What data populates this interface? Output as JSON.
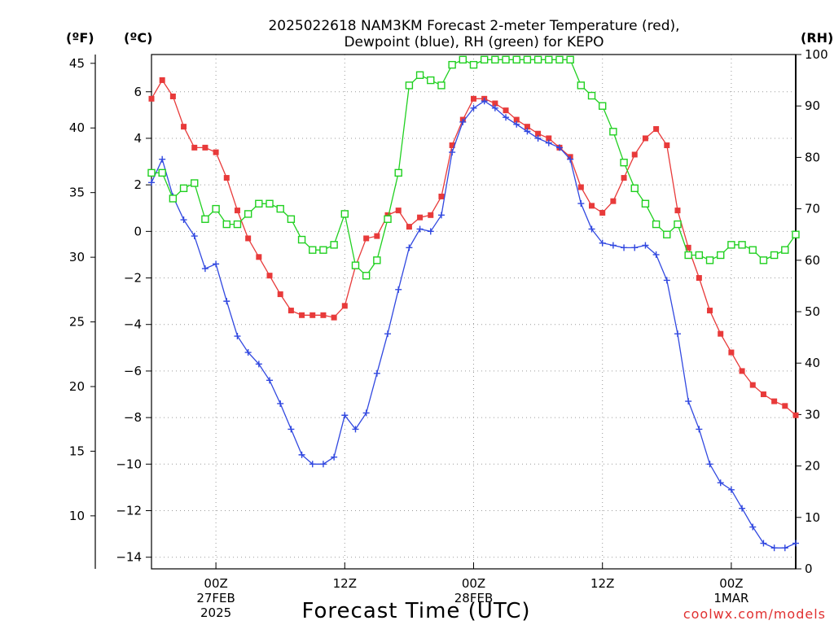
{
  "chart_data": {
    "type": "line",
    "title_line1": "2025022618 NAM3KM Forecast 2-meter Temperature (red),",
    "title_line2": "Dewpoint (blue), RH (green) for KEPO",
    "unit_left_f": "(ºF)",
    "unit_left_c": "(ºC)",
    "unit_right_rh": "(RH)",
    "xlabel": "Forecast Time (UTC)",
    "credit": "coolwx.com/models",
    "x_unit": "forecast hour from 2025-02-26 18Z",
    "xlim": [
      0,
      60
    ],
    "ylim_c": [
      -14.5,
      7.6
    ],
    "ylim_f": [
      5.9,
      45.68
    ],
    "ylim_rh": [
      0,
      100
    ],
    "y_ticks_c": [
      "−14",
      "−12",
      "−10",
      "−8",
      "−6",
      "−4",
      "−2",
      "0",
      "2",
      "4",
      "6"
    ],
    "y_ticks_c_values": [
      -14,
      -12,
      -10,
      -8,
      -6,
      -4,
      -2,
      0,
      2,
      4,
      6
    ],
    "y_ticks_f": [
      "10",
      "15",
      "20",
      "25",
      "30",
      "35",
      "40",
      "45"
    ],
    "y_ticks_f_values": [
      10,
      15,
      20,
      25,
      30,
      35,
      40,
      45
    ],
    "y_ticks_rh": [
      "0",
      "10",
      "20",
      "30",
      "40",
      "50",
      "60",
      "70",
      "80",
      "90",
      "100"
    ],
    "y_ticks_rh_values": [
      0,
      10,
      20,
      30,
      40,
      50,
      60,
      70,
      80,
      90,
      100
    ],
    "x_ticks": [
      {
        "x": 6,
        "lines": [
          "00Z",
          "27FEB",
          "2025"
        ]
      },
      {
        "x": 18,
        "lines": [
          "12Z"
        ]
      },
      {
        "x": 30,
        "lines": [
          "00Z",
          "28FEB"
        ]
      },
      {
        "x": 42,
        "lines": [
          "12Z"
        ]
      },
      {
        "x": 54,
        "lines": [
          "00Z",
          "1MAR"
        ]
      }
    ],
    "grid": true,
    "series": [
      {
        "name": "Temperature",
        "color": "#e83a3a",
        "axis": "celsius",
        "marker": "filled-square",
        "x": [
          0,
          1,
          2,
          3,
          4,
          5,
          6,
          7,
          8,
          9,
          10,
          11,
          12,
          13,
          14,
          15,
          16,
          17,
          18,
          19,
          20,
          21,
          22,
          23,
          24,
          25,
          26,
          27,
          28,
          29,
          30,
          31,
          32,
          33,
          34,
          35,
          36,
          37,
          38,
          39,
          40,
          41,
          42,
          43,
          44,
          45,
          46,
          47,
          48,
          49,
          50,
          51,
          52,
          53,
          54,
          55,
          56,
          57,
          58,
          59,
          60
        ],
        "values": [
          5.7,
          6.5,
          5.8,
          4.5,
          3.6,
          3.6,
          3.4,
          2.3,
          0.9,
          -0.3,
          -1.1,
          -1.9,
          -2.7,
          -3.4,
          -3.6,
          -3.6,
          -3.6,
          -3.7,
          -3.2,
          -1.5,
          -0.3,
          -0.2,
          0.7,
          0.9,
          0.2,
          0.6,
          0.7,
          1.5,
          3.7,
          4.8,
          5.7,
          5.7,
          5.5,
          5.2,
          4.8,
          4.5,
          4.2,
          4.0,
          3.6,
          3.2,
          1.9,
          1.1,
          0.8,
          1.3,
          2.3,
          3.3,
          4.0,
          4.4,
          3.7,
          0.9,
          -0.7,
          -2.0,
          -3.4,
          -4.4,
          -5.2,
          -6.0,
          -6.6,
          -7.0,
          -7.3,
          -7.5,
          -7.9
        ]
      },
      {
        "name": "Dewpoint",
        "color": "#3148e0",
        "axis": "celsius",
        "marker": "plus",
        "x": [
          0,
          1,
          2,
          3,
          4,
          5,
          6,
          7,
          8,
          9,
          10,
          11,
          12,
          13,
          14,
          15,
          16,
          17,
          18,
          19,
          20,
          21,
          22,
          23,
          24,
          25,
          26,
          27,
          28,
          29,
          30,
          31,
          32,
          33,
          34,
          35,
          36,
          37,
          38,
          39,
          40,
          41,
          42,
          43,
          44,
          45,
          46,
          47,
          48,
          49,
          50,
          51,
          52,
          53,
          54,
          55,
          56,
          57,
          58,
          59,
          60
        ],
        "values": [
          2.1,
          3.1,
          1.5,
          0.5,
          -0.2,
          -1.6,
          -1.4,
          -3.0,
          -4.5,
          -5.2,
          -5.7,
          -6.4,
          -7.4,
          -8.5,
          -9.6,
          -10.0,
          -10.0,
          -9.7,
          -7.9,
          -8.5,
          -7.8,
          -6.1,
          -4.4,
          -2.5,
          -0.7,
          0.1,
          0.0,
          0.7,
          3.4,
          4.7,
          5.3,
          5.6,
          5.3,
          4.9,
          4.6,
          4.3,
          4.0,
          3.8,
          3.6,
          3.1,
          1.2,
          0.1,
          -0.5,
          -0.6,
          -0.7,
          -0.7,
          -0.6,
          -1.0,
          -2.1,
          -4.4,
          -7.3,
          -8.5,
          -10.0,
          -10.8,
          -11.1,
          -11.9,
          -12.7,
          -13.4,
          -13.6,
          -13.6,
          -13.4
        ]
      },
      {
        "name": "RH",
        "color": "#20d020",
        "axis": "rh",
        "marker": "open-square",
        "x": [
          0,
          1,
          2,
          3,
          4,
          5,
          6,
          7,
          8,
          9,
          10,
          11,
          12,
          13,
          14,
          15,
          16,
          17,
          18,
          19,
          20,
          21,
          22,
          23,
          24,
          25,
          26,
          27,
          28,
          29,
          30,
          31,
          32,
          33,
          34,
          35,
          36,
          37,
          38,
          39,
          40,
          41,
          42,
          43,
          44,
          45,
          46,
          47,
          48,
          49,
          50,
          51,
          52,
          53,
          54,
          55,
          56,
          57,
          58,
          59,
          60
        ],
        "values": [
          77,
          77,
          72,
          74,
          75,
          68,
          70,
          67,
          67,
          69,
          71,
          71,
          70,
          68,
          64,
          62,
          62,
          63,
          69,
          59,
          57,
          60,
          68,
          77,
          94,
          96,
          95,
          94,
          98,
          99,
          98,
          99,
          99,
          99,
          99,
          99,
          99,
          99,
          99,
          99,
          94,
          92,
          90,
          85,
          79,
          74,
          71,
          67,
          65,
          67,
          61,
          61,
          60,
          61,
          63,
          63,
          62,
          60,
          61,
          62,
          65
        ]
      }
    ]
  }
}
